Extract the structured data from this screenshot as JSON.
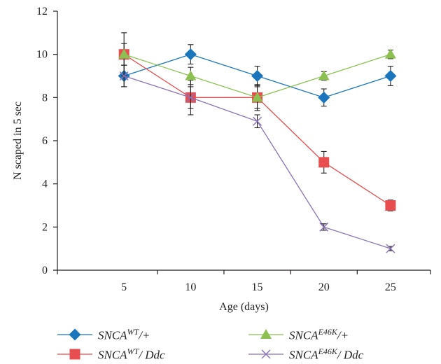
{
  "chart_data": {
    "type": "line",
    "xlabel": "Age (days)",
    "ylabel": "N scaped in 5 sec",
    "x": [
      5,
      10,
      15,
      20,
      25
    ],
    "xlim": [
      0,
      28
    ],
    "ylim": [
      0,
      12
    ],
    "yticks": [
      0,
      2,
      4,
      6,
      8,
      10,
      12
    ],
    "grid": false,
    "legend_position": "bottom",
    "series": [
      {
        "name": "SNCA WT/+",
        "name_base": "SNCA",
        "name_sup": "WT",
        "name_suffix": "/+",
        "color": "#1a75bc",
        "marker": "diamond",
        "values": [
          9,
          10,
          9,
          8,
          9
        ],
        "errors": [
          0.5,
          0.45,
          0.45,
          0.4,
          0.45
        ]
      },
      {
        "name": "SNCA WT/ Ddc",
        "name_base": "SNCA",
        "name_sup": "WT",
        "name_suffix": "/ Ddc",
        "color": "#e84e4f",
        "marker": "square",
        "values": [
          10,
          8,
          8,
          5,
          3
        ],
        "errors": [
          1.0,
          0.8,
          0.6,
          0.5,
          0.25
        ]
      },
      {
        "name": "SNCA E46K/+",
        "name_base": "SNCA",
        "name_sup": "E46K",
        "name_suffix": "/+",
        "color": "#8cc152",
        "marker": "triangle",
        "values": [
          10,
          9,
          8,
          9,
          10
        ],
        "errors": [
          0.5,
          0.4,
          0.5,
          0.2,
          0.2
        ]
      },
      {
        "name": "SNCA E46K/ Ddc",
        "name_base": "SNCA",
        "name_sup": "E46K",
        "name_suffix": "/ Ddc",
        "color": "#8b72b6",
        "marker": "x",
        "values": [
          9,
          8,
          6.9,
          2,
          1
        ],
        "errors": [
          0.5,
          0.5,
          0.3,
          0.15,
          0.1
        ]
      }
    ]
  }
}
